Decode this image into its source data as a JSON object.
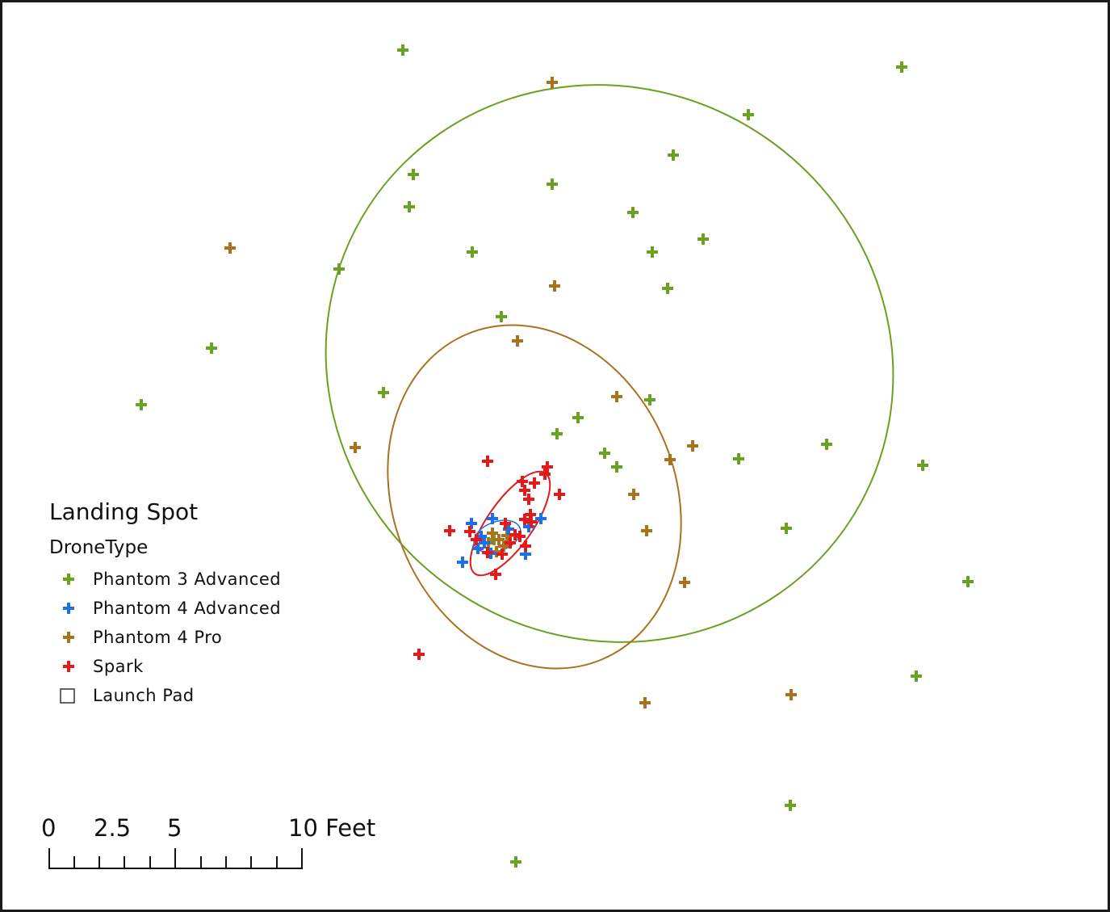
{
  "legend": {
    "title": "Landing Spot",
    "subtitle": "DroneType",
    "items": [
      {
        "label": "Phantom 3 Advanced",
        "symbol": "plus",
        "color": "#6aa121"
      },
      {
        "label": "Phantom 4 Advanced",
        "symbol": "plus",
        "color": "#1e6fe0"
      },
      {
        "label": "Phantom 4 Pro",
        "symbol": "plus",
        "color": "#a8721f"
      },
      {
        "label": "Spark",
        "symbol": "plus",
        "color": "#e31a1c"
      },
      {
        "label": "Launch Pad",
        "symbol": "square",
        "color": "#333333"
      }
    ]
  },
  "scale_bar": {
    "labels": [
      "0",
      "2.5",
      "5",
      "10 Feet"
    ]
  },
  "colors": {
    "phantom3": "#6aa121",
    "phantom4adv": "#1e6fe0",
    "phantom4pro": "#a8721f",
    "spark": "#e31a1c"
  }
}
